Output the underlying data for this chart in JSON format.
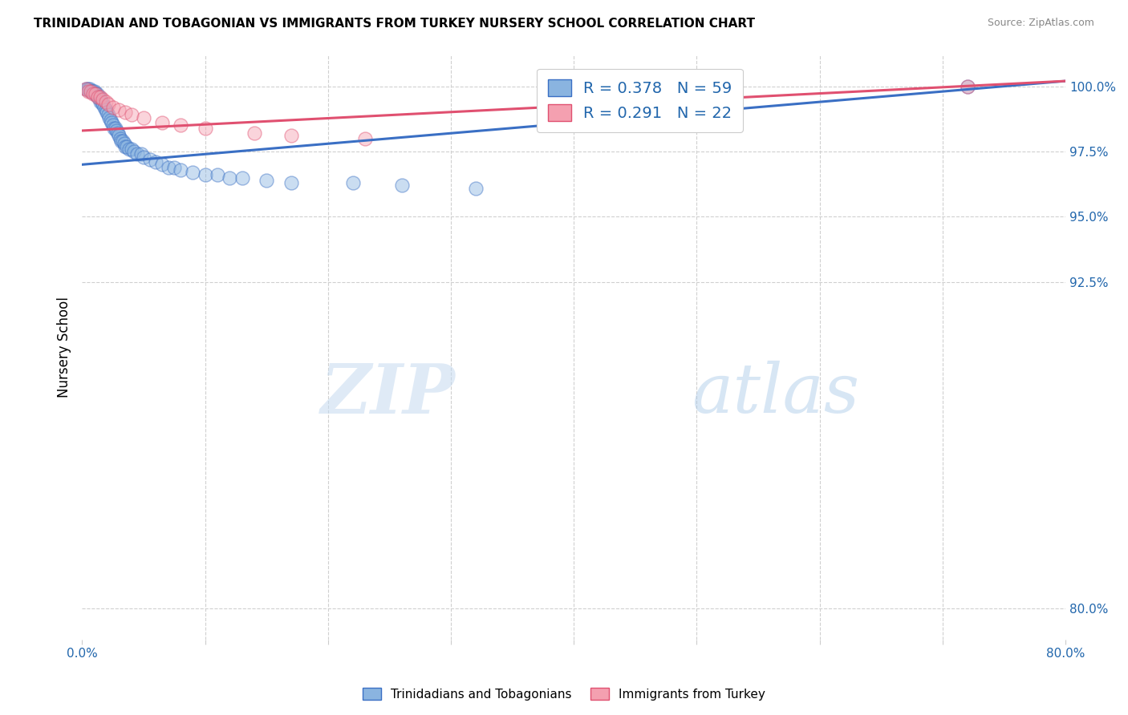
{
  "title": "TRINIDADIAN AND TOBAGONIAN VS IMMIGRANTS FROM TURKEY NURSERY SCHOOL CORRELATION CHART",
  "source": "Source: ZipAtlas.com",
  "ylabel": "Nursery School",
  "ytick_labels": [
    "100.0%",
    "97.5%",
    "95.0%",
    "92.5%",
    "80.0%"
  ],
  "ytick_values": [
    1.0,
    0.975,
    0.95,
    0.925,
    0.8
  ],
  "xmin": 0.0,
  "xmax": 0.8,
  "ymin": 0.788,
  "ymax": 1.012,
  "legend_label1": "R = 0.378   N = 59",
  "legend_label2": "R = 0.291   N = 22",
  "legend_title1": "Trinidadians and Tobagonians",
  "legend_title2": "Immigrants from Turkey",
  "color_blue": "#8ab4e0",
  "color_pink": "#f4a0b0",
  "line_color_blue": "#3a6fc4",
  "line_color_pink": "#e05070",
  "watermark_zip": "ZIP",
  "watermark_atlas": "atlas",
  "blue_x": [
    0.003,
    0.004,
    0.005,
    0.006,
    0.007,
    0.008,
    0.009,
    0.01,
    0.01,
    0.011,
    0.012,
    0.013,
    0.014,
    0.015,
    0.015,
    0.016,
    0.017,
    0.018,
    0.019,
    0.02,
    0.021,
    0.022,
    0.023,
    0.024,
    0.025,
    0.026,
    0.027,
    0.028,
    0.029,
    0.03,
    0.031,
    0.032,
    0.033,
    0.034,
    0.035,
    0.036,
    0.038,
    0.04,
    0.042,
    0.045,
    0.048,
    0.05,
    0.055,
    0.06,
    0.065,
    0.07,
    0.075,
    0.08,
    0.09,
    0.1,
    0.11,
    0.12,
    0.13,
    0.15,
    0.17,
    0.22,
    0.26,
    0.32,
    0.72
  ],
  "blue_y": [
    0.999,
    0.999,
    0.999,
    0.999,
    0.998,
    0.998,
    0.998,
    0.998,
    0.997,
    0.997,
    0.997,
    0.996,
    0.996,
    0.995,
    0.994,
    0.994,
    0.993,
    0.992,
    0.991,
    0.99,
    0.989,
    0.988,
    0.987,
    0.986,
    0.985,
    0.984,
    0.984,
    0.983,
    0.982,
    0.981,
    0.98,
    0.979,
    0.979,
    0.978,
    0.977,
    0.977,
    0.976,
    0.976,
    0.975,
    0.974,
    0.974,
    0.973,
    0.972,
    0.971,
    0.97,
    0.969,
    0.969,
    0.968,
    0.967,
    0.966,
    0.966,
    0.965,
    0.965,
    0.964,
    0.963,
    0.963,
    0.962,
    0.961,
    1.0
  ],
  "pink_x": [
    0.003,
    0.005,
    0.007,
    0.009,
    0.011,
    0.013,
    0.015,
    0.017,
    0.019,
    0.021,
    0.025,
    0.03,
    0.035,
    0.04,
    0.05,
    0.065,
    0.08,
    0.1,
    0.14,
    0.17,
    0.23,
    0.72
  ],
  "pink_y": [
    0.999,
    0.998,
    0.998,
    0.997,
    0.997,
    0.996,
    0.996,
    0.995,
    0.994,
    0.993,
    0.992,
    0.991,
    0.99,
    0.989,
    0.988,
    0.986,
    0.985,
    0.984,
    0.982,
    0.981,
    0.98,
    1.0
  ],
  "blue_line_x0": 0.0,
  "blue_line_x1": 0.8,
  "blue_line_y0": 0.97,
  "blue_line_y1": 1.002,
  "pink_line_x0": 0.0,
  "pink_line_x1": 0.8,
  "pink_line_y0": 0.983,
  "pink_line_y1": 1.002
}
